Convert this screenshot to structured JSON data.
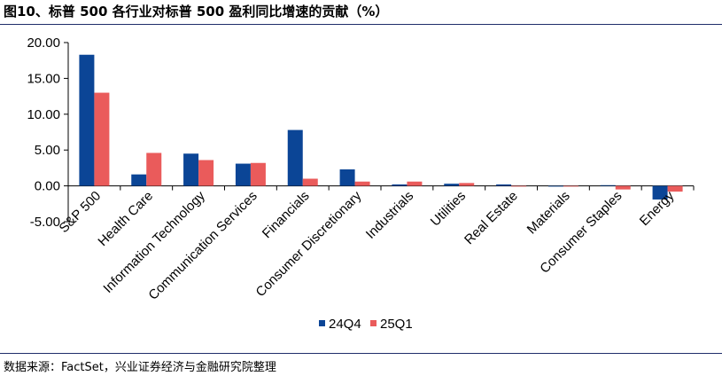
{
  "title": "图10、标普 500 各行业对标普 500 盈利同比增速的贡献（%）",
  "source": "数据来源：FactSet，兴业证券经济与金融研究院整理",
  "colors": {
    "24Q4": "#0b4596",
    "25Q1": "#ea5b5b",
    "rule": "#1f2d6b"
  },
  "chart_data": {
    "type": "bar",
    "categories": [
      "S&P 500",
      "Health Care",
      "Information Technology",
      "Communication Services",
      "Financials",
      "Consumer Discretionary",
      "Industrials",
      "Utilities",
      "Real Estate",
      "Materials",
      "Consumer Staples",
      "Energy"
    ],
    "series": [
      {
        "name": "24Q4",
        "values": [
          18.3,
          1.6,
          4.5,
          3.1,
          7.8,
          2.3,
          0.2,
          0.3,
          0.2,
          0.0,
          0.1,
          -1.9
        ]
      },
      {
        "name": "25Q1",
        "values": [
          13.0,
          4.6,
          3.6,
          3.2,
          1.0,
          0.6,
          0.6,
          0.4,
          0.0,
          -0.1,
          -0.5,
          -0.8
        ]
      }
    ],
    "yticks": [
      "20.00",
      "15.00",
      "10.00",
      "5.00",
      "0.00",
      "-5.00"
    ],
    "ylim": [
      -5,
      20
    ],
    "legend_position": "bottom"
  }
}
